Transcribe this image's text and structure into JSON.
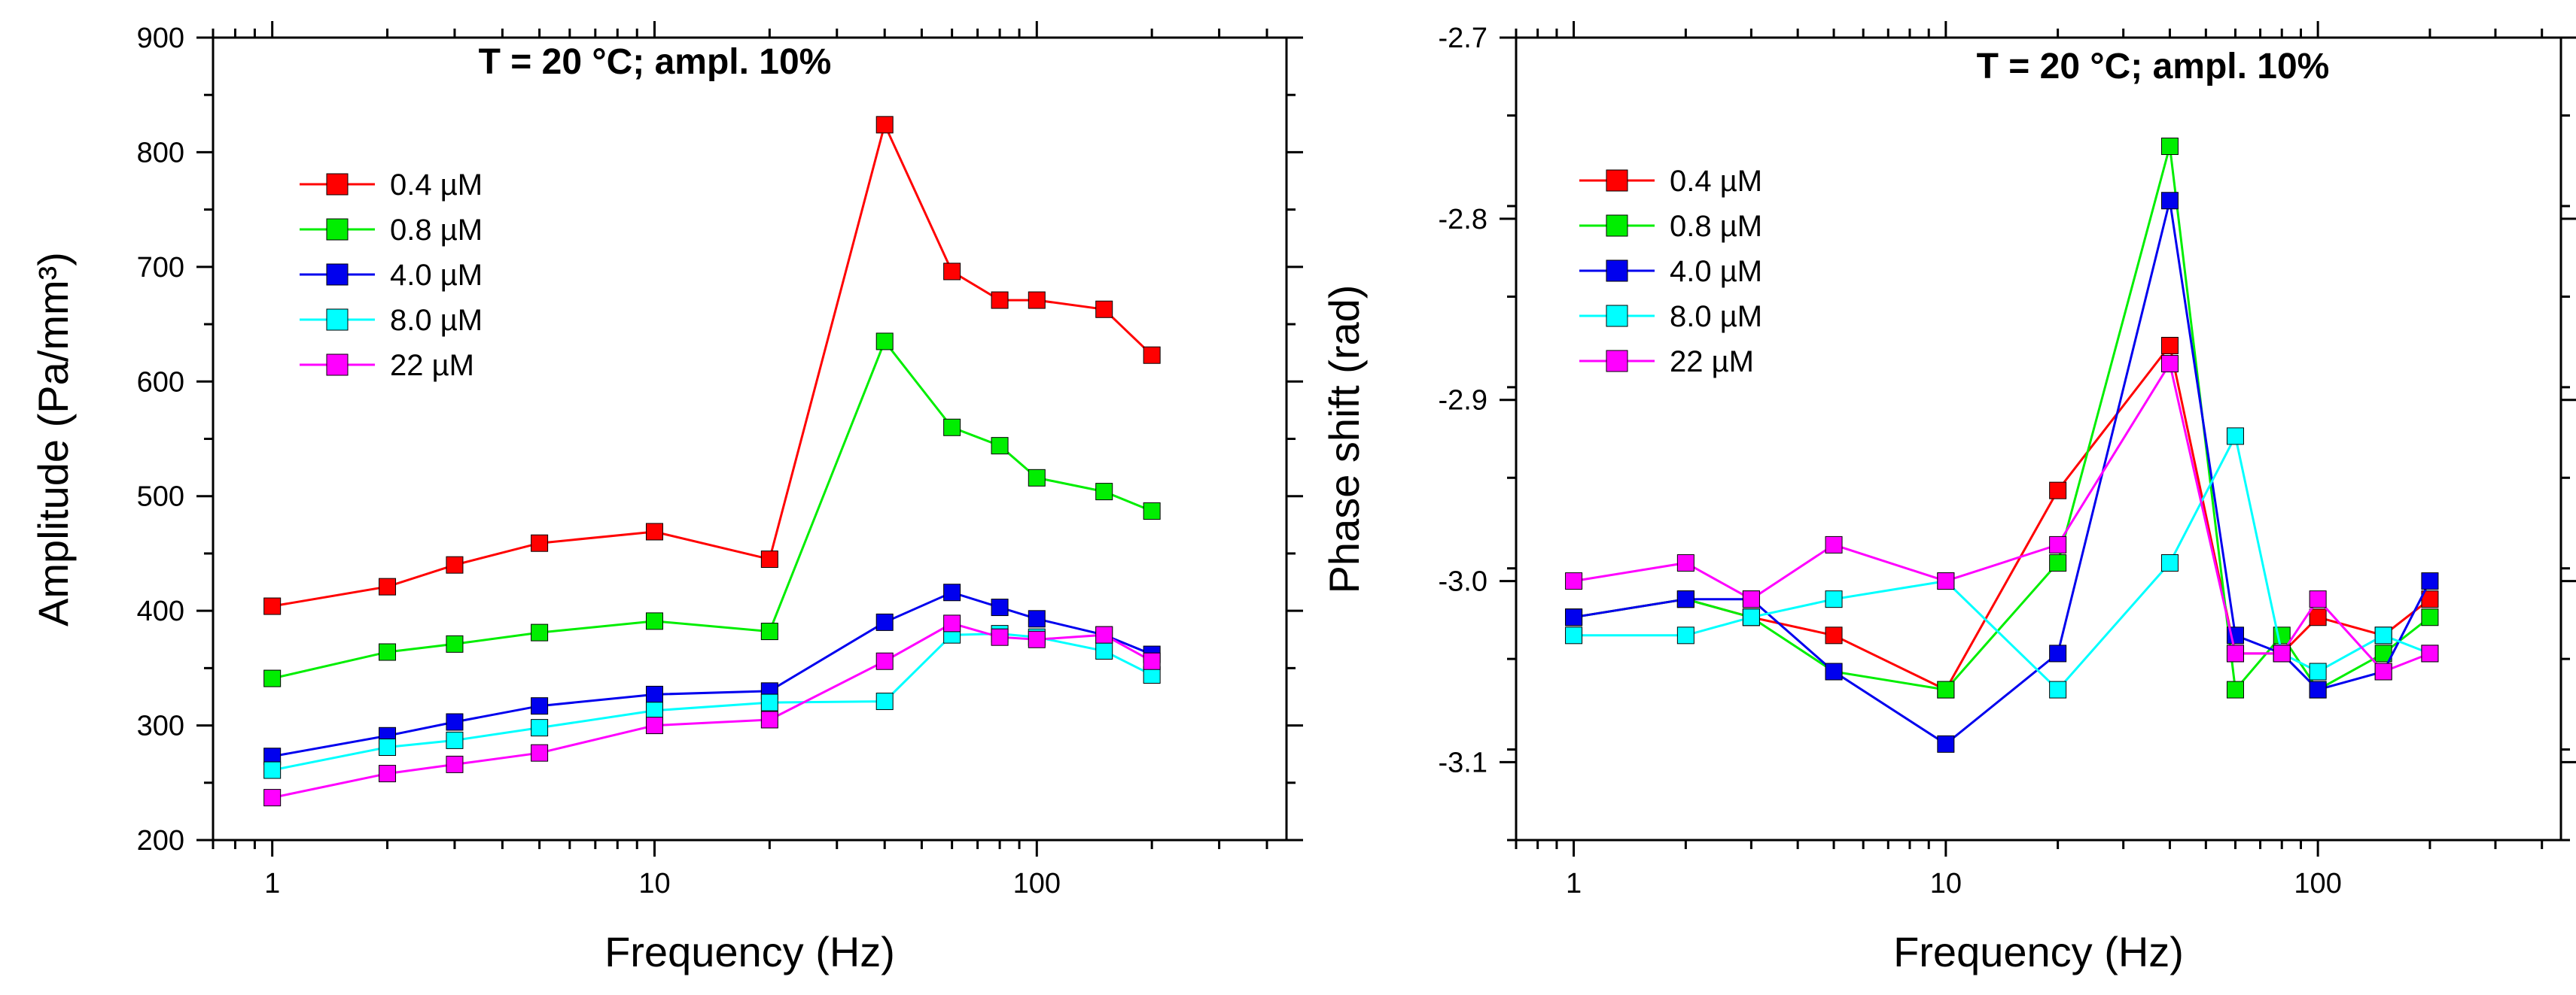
{
  "chart_data": [
    {
      "type": "line",
      "title": "T = 20 °C;  ampl. 10%",
      "xlabel": "Frequency (Hz)",
      "ylabel": "Amplitude (Pa/mm³)",
      "xscale": "log",
      "xlim": [
        0.7,
        450
      ],
      "ylim": [
        200,
        900
      ],
      "x": [
        1,
        2,
        3,
        5,
        10,
        20,
        40,
        60,
        80,
        100,
        150,
        200
      ],
      "xticks": [
        1,
        10,
        100
      ],
      "xtick_labels": [
        "1",
        "10",
        "100"
      ],
      "yticks": [
        200,
        300,
        400,
        500,
        600,
        700,
        800,
        900
      ],
      "ytick_labels": [
        "200",
        "300",
        "400",
        "500",
        "600",
        "700",
        "800",
        "900"
      ],
      "legend_position": "top-left",
      "series": [
        {
          "name": "0.4 µM",
          "color": "#ff0000",
          "values": [
            404,
            421,
            440,
            459,
            469,
            445,
            824,
            696,
            671,
            671,
            663,
            623
          ]
        },
        {
          "name": "0.8 µM",
          "color": "#00ee00",
          "values": [
            341,
            364,
            371,
            381,
            391,
            382,
            635,
            560,
            544,
            516,
            504,
            487
          ]
        },
        {
          "name": "4.0 µM",
          "color": "#0000ee",
          "values": [
            273,
            291,
            303,
            317,
            327,
            330,
            390,
            416,
            403,
            393,
            379,
            362
          ]
        },
        {
          "name": "8.0 µM",
          "color": "#00ffff",
          "values": [
            261,
            281,
            287,
            298,
            313,
            320,
            321,
            379,
            380,
            377,
            365,
            344
          ]
        },
        {
          "name": "22 µM",
          "color": "#ff00ff",
          "values": [
            237,
            258,
            266,
            276,
            300,
            305,
            356,
            389,
            377,
            375,
            379,
            356
          ]
        }
      ]
    },
    {
      "type": "line",
      "title": "T = 20 °C;  ampl. 10%",
      "xlabel": "Frequency (Hz)",
      "ylabel": "Phase shift (rad)",
      "xscale": "log",
      "xlim": [
        0.7,
        450
      ],
      "ylim": [
        -3.143,
        -2.7
      ],
      "x": [
        1,
        2,
        3,
        5,
        10,
        20,
        40,
        60,
        80,
        100,
        150,
        200
      ],
      "xticks": [
        1,
        10,
        100
      ],
      "xtick_labels": [
        "1",
        "10",
        "100"
      ],
      "yticks": [
        -3.1,
        -3.0,
        -2.9,
        -2.8,
        -2.7
      ],
      "ytick_labels": [
        "-3.1",
        "-3.0",
        "-2.9",
        "-2.8",
        "-2.7"
      ],
      "legend_position": "top-left",
      "series": [
        {
          "name": "0.4 µM",
          "color": "#ff0000",
          "values": [
            -3.02,
            -3.01,
            -3.02,
            -3.03,
            -3.06,
            -2.95,
            -2.87,
            -3.04,
            -3.04,
            -3.02,
            -3.03,
            -3.01
          ]
        },
        {
          "name": "0.8 µM",
          "color": "#00ee00",
          "values": [
            -3.02,
            -3.01,
            -3.02,
            -3.05,
            -3.06,
            -2.99,
            -2.76,
            -3.06,
            -3.03,
            -3.06,
            -3.04,
            -3.02
          ]
        },
        {
          "name": "4.0 µM",
          "color": "#0000ee",
          "values": [
            -3.02,
            -3.01,
            -3.01,
            -3.05,
            -3.09,
            -3.04,
            -2.79,
            -3.03,
            -3.04,
            -3.06,
            -3.05,
            -3.0
          ]
        },
        {
          "name": "8.0 µM",
          "color": "#00ffff",
          "values": [
            -3.03,
            -3.03,
            -3.02,
            -3.01,
            -3.0,
            -3.06,
            -2.99,
            -2.92,
            -3.04,
            -3.05,
            -3.03,
            -3.04
          ]
        },
        {
          "name": "22 µM",
          "color": "#ff00ff",
          "values": [
            -3.0,
            -2.99,
            -3.01,
            -2.98,
            -3.0,
            -2.98,
            -2.88,
            -3.04,
            -3.04,
            -3.01,
            -3.05,
            -3.04
          ]
        }
      ]
    }
  ]
}
